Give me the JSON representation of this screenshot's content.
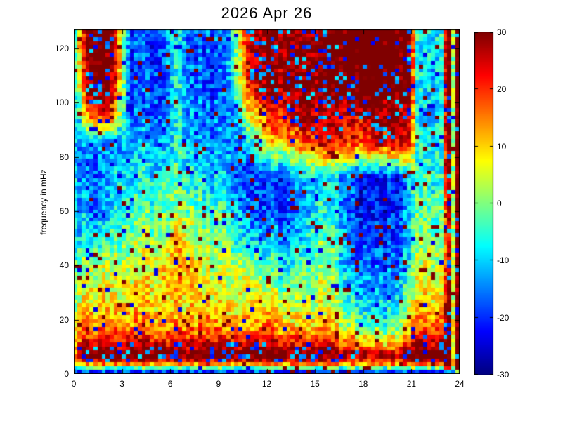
{
  "figure": {
    "background": "#ffffff"
  },
  "chart_data": {
    "type": "heatmap",
    "title": "2026 Apr 26",
    "xlabel": "",
    "ylabel": "frequency in mHz",
    "xlim": [
      0,
      24
    ],
    "ylim": [
      0,
      127
    ],
    "xticks": [
      0,
      3,
      6,
      9,
      12,
      15,
      18,
      21,
      24
    ],
    "yticks": [
      0,
      20,
      40,
      60,
      80,
      100,
      120
    ],
    "grid": "off",
    "legend": "none",
    "colorbar": {
      "min": -30,
      "max": 30,
      "ticks": [
        -30,
        -20,
        -10,
        0,
        10,
        20,
        30
      ],
      "colormap": "jet",
      "position": "right"
    },
    "value_unit": "dB",
    "grid_rows_mHz": [
      0,
      2,
      4,
      7,
      10,
      14,
      18,
      24,
      32,
      40,
      50,
      60,
      72,
      85,
      95,
      105,
      115,
      127
    ],
    "grid_cols_hour": [
      0,
      0.3,
      1,
      2,
      2.7,
      3.5,
      4.5,
      5.5,
      6.3,
      6.7,
      7.5,
      8.5,
      9.5,
      10.2,
      11,
      12,
      13,
      14,
      15,
      16,
      17,
      18,
      19,
      20,
      21,
      21.3,
      22,
      22.9,
      23.25,
      23.5,
      23.7,
      23.85,
      24
    ],
    "grid_values_db": [
      [
        -26,
        -26,
        -26,
        -26,
        -26,
        -26,
        -26,
        -26,
        -26,
        -26,
        -26,
        -26,
        -26,
        -26,
        -26,
        -26,
        -26,
        -26,
        -26,
        -26,
        -26,
        -26,
        -26,
        -26,
        -26,
        -26,
        -26,
        -26,
        -22,
        -20,
        -24,
        -16,
        -12
      ],
      [
        -2,
        -4,
        -5,
        -4,
        -5,
        -4,
        -5,
        -3,
        -4,
        -5,
        -4,
        -3,
        -5,
        -4,
        -5,
        -4,
        -5,
        -4,
        -4,
        -5,
        -4,
        -5,
        -4,
        -4,
        -4,
        -3,
        -2,
        -3,
        22,
        30,
        -16,
        30,
        30
      ],
      [
        8,
        16,
        20,
        22,
        19,
        24,
        21,
        22,
        19,
        23,
        20,
        24,
        21,
        20,
        22,
        20,
        21,
        22,
        20,
        19,
        20,
        18,
        17,
        18,
        20,
        22,
        24,
        22,
        33,
        36,
        -10,
        36,
        36
      ],
      [
        12,
        28,
        34,
        36,
        33,
        36,
        34,
        35,
        34,
        36,
        35,
        34,
        36,
        35,
        34,
        35,
        34,
        35,
        34,
        33,
        32,
        28,
        26,
        28,
        32,
        34,
        35,
        34,
        36,
        36,
        -5,
        36,
        36
      ],
      [
        10,
        22,
        27,
        29,
        26,
        28,
        27,
        28,
        26,
        28,
        27,
        28,
        26,
        27,
        26,
        27,
        26,
        26,
        25,
        24,
        22,
        14,
        12,
        14,
        22,
        28,
        30,
        28,
        35,
        36,
        -8,
        36,
        36
      ],
      [
        8,
        16,
        20,
        21,
        19,
        21,
        20,
        21,
        19,
        21,
        20,
        19,
        21,
        20,
        19,
        20,
        19,
        19,
        18,
        17,
        14,
        6,
        4,
        6,
        14,
        22,
        24,
        22,
        33,
        35,
        -10,
        35,
        35
      ],
      [
        6,
        12,
        14,
        15,
        13,
        15,
        14,
        15,
        13,
        15,
        14,
        15,
        13,
        14,
        13,
        14,
        12,
        12,
        11,
        10,
        4,
        -2,
        -4,
        -2,
        8,
        16,
        18,
        16,
        31,
        34,
        -12,
        34,
        34
      ],
      [
        2,
        8,
        10,
        11,
        9,
        11,
        10,
        12,
        9,
        11,
        10,
        11,
        9,
        10,
        9,
        9,
        8,
        8,
        7,
        6,
        -2,
        -8,
        -10,
        -8,
        2,
        10,
        13,
        10,
        29,
        33,
        -14,
        33,
        33
      ],
      [
        0,
        5,
        6,
        7,
        6,
        7,
        9,
        11,
        10,
        12,
        11,
        8,
        7,
        7,
        6,
        2,
        0,
        1,
        4,
        4,
        -6,
        -12,
        -14,
        -12,
        -4,
        6,
        9,
        6,
        27,
        33,
        -15,
        33,
        33
      ],
      [
        -3,
        2,
        3,
        4,
        3,
        4,
        6,
        9,
        13,
        15,
        9,
        5,
        4,
        4,
        3,
        -4,
        -6,
        -4,
        0,
        0,
        -10,
        -16,
        -18,
        -16,
        -8,
        3,
        6,
        3,
        23,
        31,
        -16,
        31,
        31
      ],
      [
        -5,
        -8,
        -10,
        -6,
        -2,
        0,
        2,
        4,
        7,
        9,
        4,
        1,
        0,
        -4,
        -10,
        -12,
        -12,
        -10,
        -2,
        -2,
        -12,
        -19,
        -20,
        -19,
        -10,
        0,
        2,
        0,
        21,
        29,
        -18,
        29,
        29
      ],
      [
        -4,
        -10,
        -15,
        -12,
        -6,
        -4,
        -2,
        -1,
        0,
        2,
        -1,
        -3,
        -4,
        -8,
        -16,
        -18,
        -18,
        -14,
        -6,
        -6,
        -14,
        -22,
        -23,
        -22,
        -12,
        -3,
        -1,
        -3,
        25,
        31,
        -20,
        33,
        33
      ],
      [
        -4,
        -12,
        -17,
        -14,
        -8,
        -7,
        -6,
        -5,
        -4,
        -3,
        -6,
        -8,
        -9,
        -12,
        -19,
        -20,
        -18,
        -12,
        -9,
        -8,
        -15,
        -23,
        -24,
        -22,
        -10,
        -5,
        -3,
        -5,
        29,
        33,
        -20,
        34,
        34
      ],
      [
        -5,
        -14,
        -16,
        -14,
        -12,
        -13,
        -12,
        -12,
        -8,
        -6,
        -13,
        -14,
        -13,
        -14,
        -10,
        4,
        12,
        18,
        22,
        24,
        22,
        20,
        24,
        26,
        20,
        -6,
        -8,
        -6,
        31,
        34,
        -20,
        35,
        35
      ],
      [
        -5,
        -8,
        18,
        20,
        10,
        -17,
        -16,
        -15,
        -8,
        -7,
        -15,
        -16,
        -14,
        -8,
        8,
        18,
        24,
        27,
        28,
        27,
        26,
        25,
        27,
        28,
        24,
        -7,
        -9,
        -7,
        32,
        35,
        -20,
        35,
        35
      ],
      [
        -4,
        5,
        32,
        33,
        20,
        -19,
        -18,
        -16,
        -8,
        -8,
        -16,
        -17,
        -15,
        0,
        22,
        28,
        30,
        31,
        30,
        32,
        34,
        35,
        35,
        34,
        28,
        -8,
        -9,
        -8,
        34,
        36,
        -20,
        36,
        36
      ],
      [
        -4,
        8,
        32,
        33,
        22,
        -20,
        -18,
        -17,
        -7,
        -9,
        -17,
        -18,
        -14,
        4,
        26,
        29,
        31,
        32,
        31,
        33,
        35,
        36,
        36,
        35,
        30,
        -8,
        -8,
        -8,
        34,
        36,
        -20,
        36,
        36
      ],
      [
        -5,
        10,
        33,
        33,
        20,
        -18,
        -17,
        -16,
        -6,
        -8,
        -16,
        -17,
        -13,
        6,
        28,
        30,
        32,
        33,
        32,
        34,
        35,
        36,
        36,
        35,
        31,
        -6,
        -7,
        -6,
        34,
        36,
        -20,
        36,
        36
      ]
    ],
    "noise": {
      "seed": 1337,
      "cell_amplitude_db": 7,
      "column_stripe_db": 3,
      "speckle_blue_prob_red_zone": 0.18,
      "speckle_blue_prob_saturated": 0.05,
      "outlier_high_prob": 0.035,
      "outlier_high_db": 36,
      "outlier_low_prob": 0.03,
      "outlier_low_db": -24,
      "speckle_blue_db": -16
    },
    "cells": {
      "ncols": 96,
      "nrows": 88
    }
  }
}
